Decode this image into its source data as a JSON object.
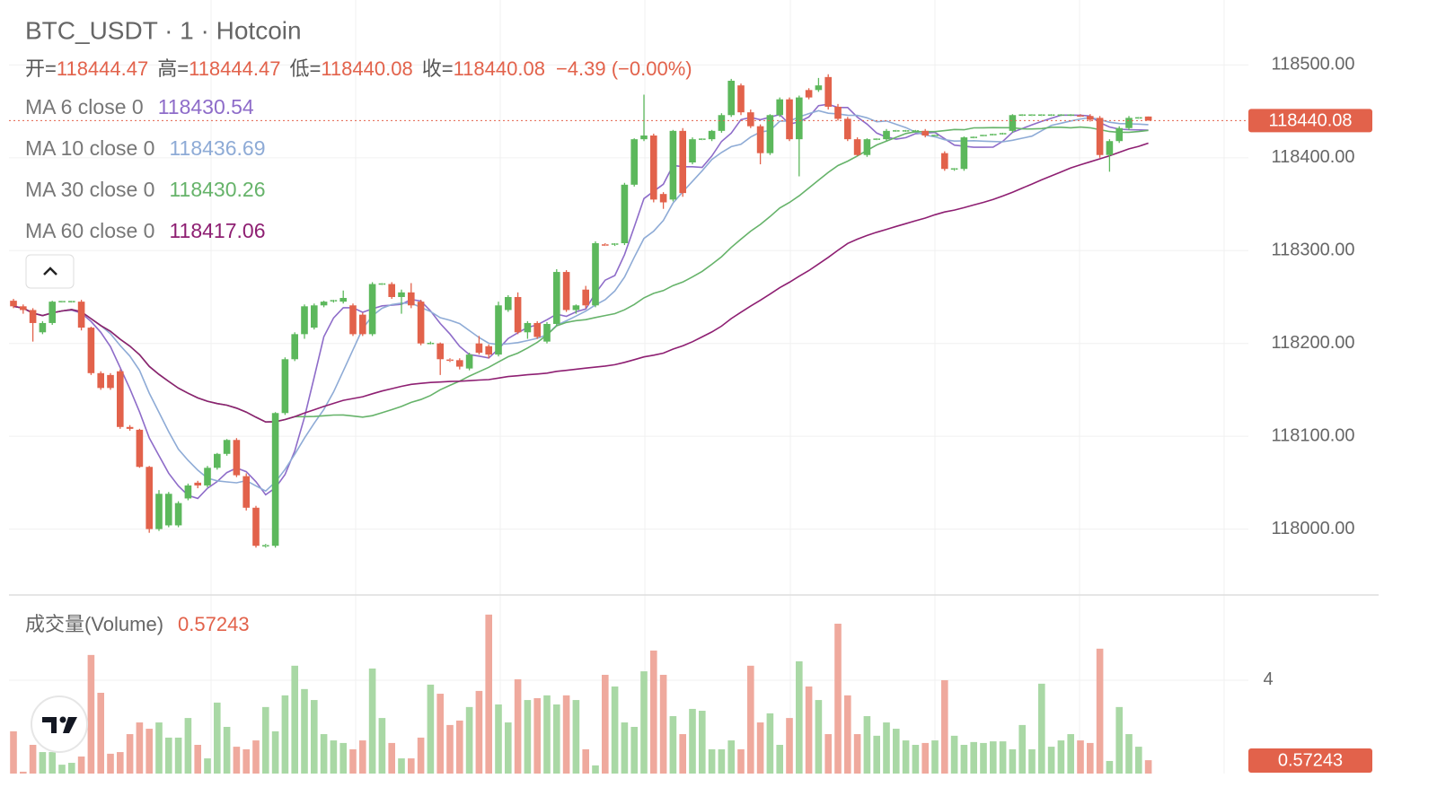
{
  "chart_data": {
    "type": "candlestick",
    "title": "BTC_USDT · 1 · Hotcoin",
    "ohlc_legend": [
      {
        "label": "开=",
        "value": 118444.47
      },
      {
        "label": "高=",
        "value": 118444.47
      },
      {
        "label": "低=",
        "value": 118440.08
      },
      {
        "label": "收=",
        "value": 118440.08
      }
    ],
    "change": "−4.39 (−0.00%)",
    "ma": [
      {
        "label": "MA 6 close 0",
        "value": 118430.54,
        "color": "#8e6cc9"
      },
      {
        "label": "MA 10 close 0",
        "value": 118436.69,
        "color": "#8eabd6"
      },
      {
        "label": "MA 30 close 0",
        "value": 118430.26,
        "color": "#66b36a"
      },
      {
        "label": "MA 60 close 0",
        "value": 118417.06,
        "color": "#8e1f72"
      }
    ],
    "up_color": "#5cb85c",
    "down_color": "#e2624b",
    "volume_up_color": "#a9d8a5",
    "volume_down_color": "#efa99d",
    "ylim": [
      117929,
      118570
    ],
    "yticks": [
      {
        "value": 118000,
        "label": "118000.00"
      },
      {
        "value": 118100,
        "label": "118100.00"
      },
      {
        "value": 118200,
        "label": "118200.00"
      },
      {
        "value": 118300,
        "label": "118300.00"
      },
      {
        "value": 118400,
        "label": "118400.00"
      },
      {
        "value": 118500,
        "label": "118500.00"
      }
    ],
    "last_price": {
      "value": 118440.08,
      "label": "118440.08"
    },
    "candles": [
      [
        118246,
        118248,
        118238,
        118240
      ],
      [
        118240,
        118242,
        118232,
        118236
      ],
      [
        118236,
        118238,
        118202,
        118222
      ],
      [
        118212,
        118224,
        118210,
        118222
      ],
      [
        118222,
        118246,
        118220,
        118245
      ],
      [
        118245,
        118246,
        118244,
        118245
      ],
      [
        118245,
        118246,
        118244,
        118245
      ],
      [
        118245,
        118247,
        118214,
        118217
      ],
      [
        118217,
        118218,
        118166,
        118168
      ],
      [
        118168,
        118170,
        118150,
        118152
      ],
      [
        118166,
        118168,
        118150,
        118152
      ],
      [
        118170,
        118172,
        118108,
        118110
      ],
      [
        118110,
        118112,
        118106,
        118108
      ],
      [
        118107,
        118108,
        118066,
        118067
      ],
      [
        118067,
        118068,
        117996,
        118000
      ],
      [
        118000,
        118042,
        117998,
        118038
      ],
      [
        118004,
        118040,
        118002,
        118038
      ],
      [
        118004,
        118030,
        118002,
        118028
      ],
      [
        118033,
        118049,
        118031,
        118047
      ],
      [
        118050,
        118052,
        118044,
        118047
      ],
      [
        118047,
        118068,
        118045,
        118066
      ],
      [
        118066,
        118082,
        118064,
        118081
      ],
      [
        118081,
        118097,
        118079,
        118096
      ],
      [
        118096,
        118098,
        118056,
        118058
      ],
      [
        118057,
        118060,
        118020,
        118023
      ],
      [
        118023,
        118025,
        117980,
        117982
      ],
      [
        117982,
        117984,
        117980,
        117982
      ],
      [
        117982,
        118126,
        117980,
        118125
      ],
      [
        118125,
        118185,
        118123,
        118183
      ],
      [
        118183,
        118212,
        118181,
        118210
      ],
      [
        118210,
        118242,
        118205,
        118240
      ],
      [
        118217,
        118243,
        118215,
        118241
      ],
      [
        118241,
        118246,
        118239,
        118245
      ],
      [
        118245,
        118247,
        118244,
        118246
      ],
      [
        118245,
        118257,
        118243,
        118249
      ],
      [
        118241,
        118243,
        118208,
        118210
      ],
      [
        118231,
        118233,
        118208,
        118210
      ],
      [
        118210,
        118266,
        118208,
        118264
      ],
      [
        118264,
        118265,
        118263,
        118264
      ],
      [
        118264,
        118266,
        118248,
        118250
      ],
      [
        118250,
        118258,
        118232,
        118255
      ],
      [
        118255,
        118265,
        118238,
        118241
      ],
      [
        118245,
        118247,
        118198,
        118200
      ],
      [
        118200,
        118202,
        118199,
        118200
      ],
      [
        118200,
        118201,
        118166,
        118183
      ],
      [
        118183,
        118184,
        118180,
        118182
      ],
      [
        118182,
        118184,
        118172,
        118175
      ],
      [
        118173,
        118190,
        118171,
        118188
      ],
      [
        118200,
        118208,
        118188,
        118190
      ],
      [
        118197,
        118199,
        118184,
        118188
      ],
      [
        118188,
        118245,
        118186,
        118241
      ],
      [
        118236,
        118252,
        118234,
        118250
      ],
      [
        118250,
        118255,
        118210,
        118212
      ],
      [
        118212,
        118224,
        118205,
        118222
      ],
      [
        118222,
        118224,
        118205,
        118207
      ],
      [
        118202,
        118223,
        118200,
        118221
      ],
      [
        118221,
        118280,
        118219,
        118277
      ],
      [
        118277,
        118279,
        118234,
        118236
      ],
      [
        118236,
        118242,
        118232,
        118241
      ],
      [
        118258,
        118262,
        118238,
        118241
      ],
      [
        118241,
        118310,
        118239,
        118308
      ],
      [
        118307,
        118308,
        118305,
        118306
      ],
      [
        118306,
        118308,
        118305,
        118307
      ],
      [
        118308,
        118373,
        118306,
        118371
      ],
      [
        118371,
        118421,
        118369,
        118420
      ],
      [
        118420,
        118468,
        118418,
        118424
      ],
      [
        118424,
        118426,
        118352,
        118355
      ],
      [
        118361,
        118363,
        118345,
        118352
      ],
      [
        118355,
        118430,
        118353,
        118429
      ],
      [
        118429,
        118432,
        118358,
        118362
      ],
      [
        118395,
        118422,
        118393,
        118420
      ],
      [
        118420,
        118421,
        118419,
        118420
      ],
      [
        118420,
        118430,
        118418,
        118429
      ],
      [
        118429,
        118448,
        118427,
        118446
      ],
      [
        118446,
        118485,
        118444,
        118483
      ],
      [
        118478,
        118480,
        118446,
        118449
      ],
      [
        118449,
        118452,
        118432,
        118434
      ],
      [
        118434,
        118436,
        118393,
        118405
      ],
      [
        118405,
        118447,
        118403,
        118446
      ],
      [
        118446,
        118465,
        118444,
        118463
      ],
      [
        118463,
        118465,
        118418,
        118420
      ],
      [
        118420,
        118467,
        118380,
        118465
      ],
      [
        118473,
        118475,
        118463,
        118465
      ],
      [
        118473,
        118486,
        118471,
        118478
      ],
      [
        118487,
        118490,
        118452,
        118455
      ],
      [
        118455,
        118458,
        118440,
        118442
      ],
      [
        118442,
        118444,
        118418,
        118420
      ],
      [
        118420,
        118422,
        118402,
        118403
      ],
      [
        118403,
        118421,
        118401,
        118420
      ],
      [
        118420,
        118421,
        118419,
        118420
      ],
      [
        118420,
        118431,
        118418,
        118429
      ],
      [
        118429,
        118430,
        118428,
        118429
      ],
      [
        118429,
        118430,
        118428,
        118429
      ],
      [
        118429,
        118430,
        118428,
        118429
      ],
      [
        118429,
        118431,
        118422,
        118424
      ],
      [
        118424,
        118425,
        118423,
        118424
      ],
      [
        118405,
        118407,
        118386,
        118388
      ],
      [
        118388,
        118389,
        118386,
        118388
      ],
      [
        118388,
        118423,
        118386,
        118422
      ],
      [
        118422,
        118423,
        118421,
        118422
      ],
      [
        118424,
        118425,
        118423,
        118424
      ],
      [
        118425,
        118426,
        118424,
        118425
      ],
      [
        118426,
        118427,
        118425,
        118426
      ],
      [
        118429,
        118447,
        118427,
        118446
      ],
      [
        118446,
        118447,
        118445,
        118446
      ],
      [
        118446,
        118447,
        118445,
        118446
      ],
      [
        118446,
        118447,
        118445,
        118446
      ],
      [
        118446,
        118447,
        118445,
        118446
      ],
      [
        118446,
        118447,
        118445,
        118446
      ],
      [
        118446,
        118447,
        118445,
        118446
      ],
      [
        118446,
        118447,
        118444,
        118445
      ],
      [
        118445,
        118447,
        118439,
        118441
      ],
      [
        118443,
        118445,
        118400,
        118403
      ],
      [
        118403,
        118420,
        118385,
        118418
      ],
      [
        118418,
        118434,
        118416,
        118432
      ],
      [
        118432,
        118445,
        118430,
        118443
      ],
      [
        118443,
        118444,
        118442,
        118443
      ],
      [
        118444.47,
        118444.47,
        118440.08,
        118440.08
      ]
    ],
    "volume_title": "成交量(Volume)",
    "volume_value": 0.57243,
    "volume_ylim": [
      0,
      7.65
    ],
    "volume_yticks": [
      4
    ],
    "volume_last": {
      "value": 0.57243,
      "label": "0.57243"
    },
    "volume": [
      1.81,
      0.08,
      1.23,
      0.92,
      0.92,
      0.38,
      0.46,
      0.73,
      5.08,
      3.46,
      0.85,
      0.92,
      1.69,
      2.19,
      1.92,
      2.19,
      1.54,
      1.54,
      2.38,
      1.23,
      0.65,
      3.04,
      2.0,
      1.15,
      1.04,
      1.42,
      2.85,
      1.81,
      3.35,
      4.62,
      3.62,
      3.15,
      1.69,
      1.42,
      1.31,
      1.04,
      1.42,
      4.5,
      2.38,
      1.31,
      0.65,
      0.65,
      1.54,
      3.81,
      3.42,
      2.08,
      2.27,
      2.85,
      3.54,
      6.81,
      2.96,
      2.19,
      4.04,
      3.15,
      3.23,
      3.35,
      2.96,
      3.35,
      3.15,
      1.04,
      0.35,
      4.23,
      3.73,
      2.19,
      2.0,
      4.38,
      5.27,
      4.23,
      2.46,
      1.69,
      2.77,
      2.69,
      1.04,
      1.04,
      1.42,
      1.04,
      4.62,
      2.19,
      2.58,
      1.23,
      2.38,
      4.81,
      3.73,
      3.15,
      1.69,
      6.42,
      3.35,
      1.69,
      2.46,
      1.62,
      2.19,
      1.92,
      1.42,
      1.23,
      1.31,
      1.42,
      4.0,
      1.62,
      1.23,
      1.35,
      1.31,
      1.38,
      1.38,
      1.04,
      2.08,
      1.04,
      3.85,
      1.15,
      1.42,
      1.69,
      1.42,
      1.31,
      5.35,
      0.54,
      2.85,
      1.69,
      1.15,
      0.57243
    ]
  }
}
